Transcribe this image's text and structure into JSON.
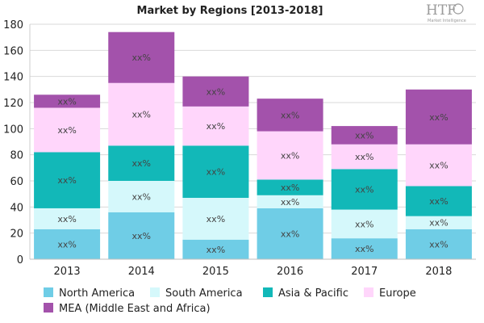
{
  "logo": {
    "brand": "HTF",
    "tagline": "Market Intelligence"
  },
  "chart_data": {
    "type": "bar",
    "stacked": true,
    "title": "Market by Regions [2013-2018]",
    "categories": [
      "2013",
      "2014",
      "2015",
      "2016",
      "2017",
      "2018"
    ],
    "ylim": [
      0,
      180
    ],
    "yticks": [
      0,
      20,
      40,
      60,
      80,
      100,
      120,
      140,
      160,
      180
    ],
    "grid": true,
    "legend_position": "bottom",
    "data_label": "xx%",
    "series": [
      {
        "name": "North America",
        "color": "#6fcde6",
        "values": [
          23,
          36,
          15,
          39,
          16,
          23
        ]
      },
      {
        "name": "South America",
        "color": "#d5f8fb",
        "values": [
          16,
          24,
          32,
          10,
          22,
          10
        ]
      },
      {
        "name": "Asia & Pacific",
        "color": "#12b8b8",
        "values": [
          43,
          27,
          40,
          12,
          31,
          23
        ]
      },
      {
        "name": "Europe",
        "color": "#ffd6fb",
        "values": [
          34,
          48,
          30,
          37,
          19,
          32
        ]
      },
      {
        "name": "MEA (Middle East and Africa)",
        "color": "#a352ab",
        "values": [
          10,
          39,
          23,
          25,
          14,
          42
        ]
      }
    ]
  }
}
